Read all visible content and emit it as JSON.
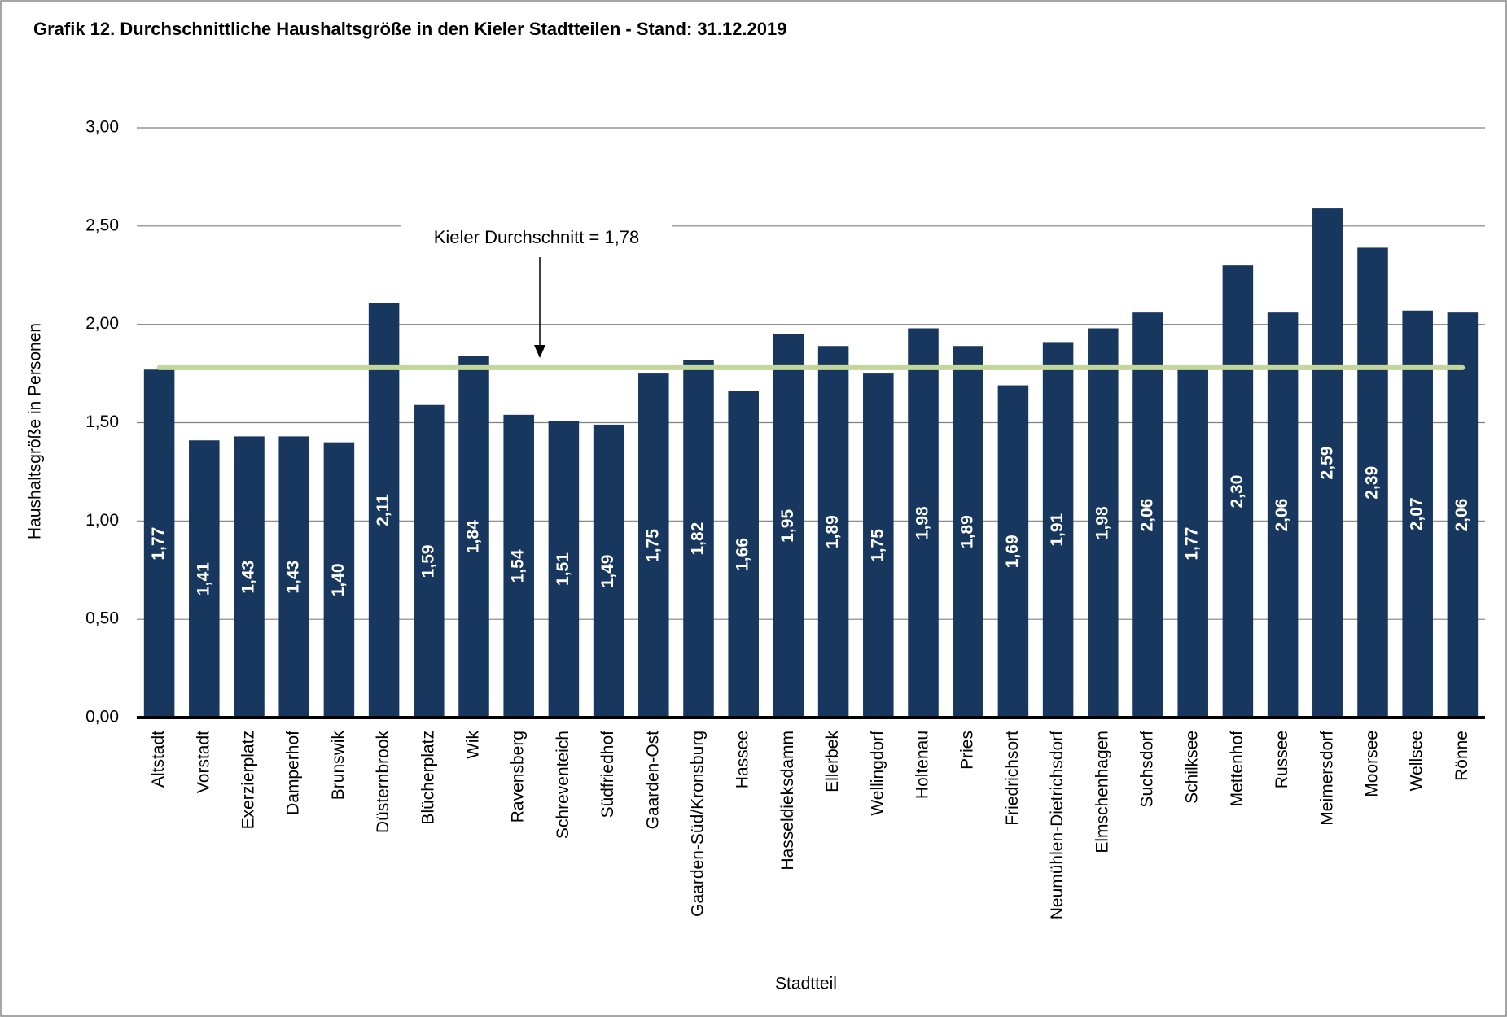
{
  "chart_data": {
    "type": "bar",
    "title": "Grafik 12.  Durchschnittliche Haushaltsgröße in den Kieler Stadtteilen - Stand: 31.12.2019",
    "xlabel": "Stadtteil",
    "ylabel": "Haushaltsgröße in Personen",
    "categories": [
      "Altstadt",
      "Vorstadt",
      "Exerzierplatz",
      "Damperhof",
      "Brunswik",
      "Düsternbrook",
      "Blücherplatz",
      "Wik",
      "Ravensberg",
      "Schreventeich",
      "Südfriedhof",
      "Gaarden-Ost",
      "Gaarden-Süd/Kronsburg",
      "Hassee",
      "Hasseldieksdamm",
      "Ellerbek",
      "Wellingdorf",
      "Holtenau",
      "Pries",
      "Friedrichsort",
      "Neumühlen-Dietrichsdorf",
      "Elmschenhagen",
      "Suchsdorf",
      "Schilksee",
      "Mettenhof",
      "Russee",
      "Meimersdorf",
      "Moorsee",
      "Wellsee",
      "Rönne"
    ],
    "values": [
      1.77,
      1.41,
      1.43,
      1.43,
      1.4,
      2.11,
      1.59,
      1.84,
      1.54,
      1.51,
      1.49,
      1.75,
      1.82,
      1.66,
      1.95,
      1.89,
      1.75,
      1.98,
      1.89,
      1.69,
      1.91,
      1.98,
      2.06,
      1.77,
      2.3,
      2.06,
      2.59,
      2.39,
      2.07,
      2.06
    ],
    "value_labels": [
      "1,77",
      "1,41",
      "1,43",
      "1,43",
      "1,40",
      "2,11",
      "1,59",
      "1,84",
      "1,54",
      "1,51",
      "1,49",
      "1,75",
      "1,82",
      "1,66",
      "1,95",
      "1,89",
      "1,75",
      "1,98",
      "1,89",
      "1,69",
      "1,91",
      "1,98",
      "2,06",
      "1,77",
      "2,30",
      "2,06",
      "2,59",
      "2,39",
      "2,07",
      "2,06"
    ],
    "color": "#17375e",
    "ylim": [
      0,
      3
    ],
    "yticks": [
      {
        "value": 0,
        "label": "0,00"
      },
      {
        "value": 0.5,
        "label": "0,50"
      },
      {
        "value": 1,
        "label": "1,00"
      },
      {
        "value": 1.5,
        "label": "1,50"
      },
      {
        "value": 2,
        "label": "2,00"
      },
      {
        "value": 2.5,
        "label": "2,50"
      },
      {
        "value": 3,
        "label": "3,00"
      }
    ],
    "grid": true,
    "reference_line": {
      "value": 1.78,
      "color": "#c3d69b",
      "label": "Kieler Durchschnitt = 1,78"
    }
  }
}
